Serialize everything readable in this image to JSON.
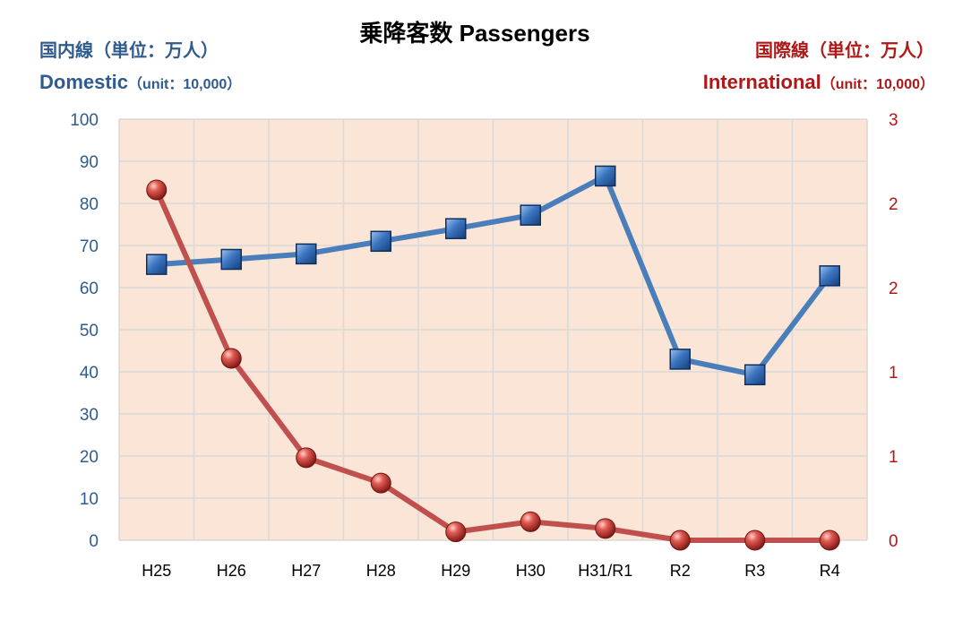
{
  "chart_data": {
    "type": "line",
    "title": "乗降客数  Passengers",
    "categories": [
      "H25",
      "H26",
      "H27",
      "H28",
      "H29",
      "H30",
      "H31/R1",
      "R2",
      "R3",
      "R4"
    ],
    "y_left": {
      "label_line1": "国内線（単位：万人）",
      "label_line2_main": "Domestic",
      "label_line2_unit": "（unit：10,000）",
      "range": [
        0,
        100
      ],
      "ticks": [
        "0",
        "10",
        "20",
        "30",
        "40",
        "50",
        "60",
        "70",
        "80",
        "90",
        "100"
      ]
    },
    "y_right": {
      "label_line1": "国際線（単位：万人）",
      "label_line2_main": "International",
      "label_line2_unit": "（unit：10,000）",
      "range": [
        0,
        2.5
      ],
      "ticks": [
        "0",
        "1",
        "1",
        "2",
        "2",
        "3"
      ]
    },
    "grid": true,
    "series": [
      {
        "name": "Domestic",
        "axis": "left",
        "color": "#4a7ebb",
        "marker": "square",
        "values": [
          65.5,
          66.7,
          68.0,
          71.0,
          74.0,
          77.2,
          86.5,
          43.0,
          39.3,
          62.8
        ]
      },
      {
        "name": "International",
        "axis": "right",
        "color": "#c0504d",
        "marker": "circle",
        "values": [
          2.08,
          1.08,
          0.49,
          0.34,
          0.05,
          0.11,
          0.07,
          0.0,
          0.0,
          0.0
        ]
      }
    ]
  }
}
